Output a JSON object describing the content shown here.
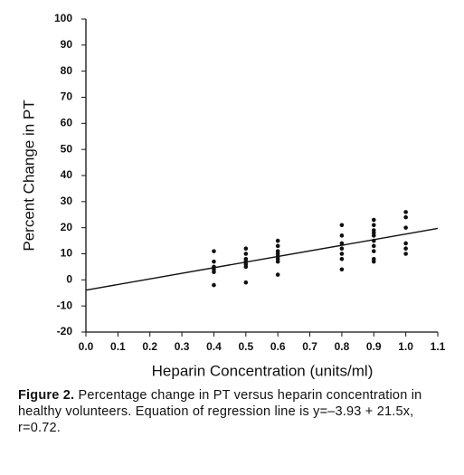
{
  "chart_data": {
    "type": "scatter",
    "x_label": "Heparin Concentration (units/ml)",
    "y_label": "Percent Change in PT",
    "xlim": [
      0,
      1.1
    ],
    "xticks": [
      {
        "value": 0,
        "label": "0.0"
      },
      0.1,
      0.2,
      0.3,
      0.4,
      0.5,
      0.6,
      0.7,
      0.8,
      0.9,
      {
        "value": 1,
        "label": "1.0"
      },
      1.1
    ],
    "ylim": [
      -20,
      100
    ],
    "yticks": [
      -20,
      -10,
      0,
      10,
      20,
      30,
      40,
      50,
      60,
      70,
      80,
      90,
      100
    ],
    "color": "#111111",
    "x": [
      0.4,
      0.4,
      0.4,
      0.4,
      0.4,
      0.4,
      0.5,
      0.5,
      0.5,
      0.5,
      0.5,
      0.5,
      0.5,
      0.6,
      0.6,
      0.6,
      0.6,
      0.6,
      0.6,
      0.6,
      0.6,
      0.8,
      0.8,
      0.8,
      0.8,
      0.8,
      0.8,
      0.8,
      0.9,
      0.9,
      0.9,
      0.9,
      0.9,
      0.9,
      0.9,
      0.9,
      0.9,
      0.9,
      1,
      1,
      1,
      1,
      1,
      1
    ],
    "values": [
      11,
      7,
      5,
      4,
      3,
      -2,
      12,
      10,
      8,
      7,
      6,
      5,
      -1,
      15,
      13,
      11,
      10,
      9,
      8,
      7,
      2,
      21,
      17,
      14,
      12,
      10,
      8,
      4,
      23,
      21,
      19,
      18,
      17,
      15,
      13,
      11,
      8,
      7,
      26,
      24,
      20,
      14,
      12,
      10
    ],
    "regression_line": {
      "x": [
        0,
        1.1
      ],
      "values": [
        -3.93,
        19.72
      ]
    }
  },
  "caption": {
    "label": "Figure 2.",
    "text": "Percentage change in PT versus heparin concentration in healthy volunteers. Equation of regression line is y=–3.93 + 21.5x, r=0.72."
  }
}
